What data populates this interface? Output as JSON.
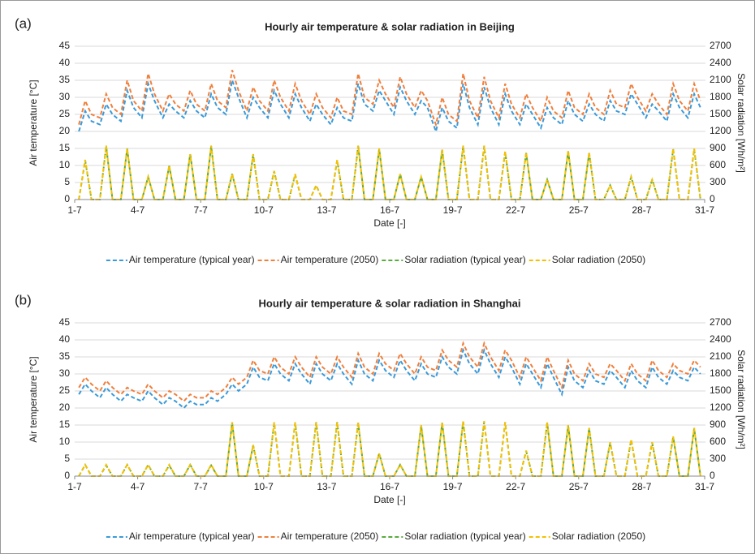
{
  "chart_data": [
    {
      "type": "line",
      "panel_label": "(a)",
      "title": "Hourly air temperature & solar radiation in Beijing",
      "x_label": "Date [-]",
      "y_label": "Air temperature [°C]",
      "y2_label": "Solar radiation [Wh/m²]",
      "xlim": [
        1,
        31
      ],
      "xticks": [
        {
          "value": 1,
          "label": "1-7"
        },
        {
          "value": 4,
          "label": "4-7"
        },
        {
          "value": 7,
          "label": "7-7"
        },
        {
          "value": 10,
          "label": "10-7"
        },
        {
          "value": 13,
          "label": "13-7"
        },
        {
          "value": 16,
          "label": "16-7"
        },
        {
          "value": 19,
          "label": "19-7"
        },
        {
          "value": 22,
          "label": "22-7"
        },
        {
          "value": 25,
          "label": "25-7"
        },
        {
          "value": 28,
          "label": "28-7"
        },
        {
          "value": 31,
          "label": "31-7"
        }
      ],
      "ylim": [
        0,
        45
      ],
      "yticks": [
        0,
        5,
        10,
        15,
        20,
        25,
        30,
        35,
        40,
        45
      ],
      "y2lim": [
        0,
        2700
      ],
      "y2ticks": [
        0,
        300,
        600,
        900,
        1200,
        1500,
        1800,
        2100,
        2400,
        2700
      ],
      "grid": true,
      "legend": "bottom",
      "x": [
        1.2,
        1.5,
        1.8,
        2.2,
        2.5,
        2.8,
        3.2,
        3.5,
        3.8,
        4.2,
        4.5,
        4.8,
        5.2,
        5.5,
        5.8,
        6.2,
        6.5,
        6.8,
        7.2,
        7.5,
        7.8,
        8.2,
        8.5,
        8.8,
        9.2,
        9.5,
        9.8,
        10.2,
        10.5,
        10.8,
        11.2,
        11.5,
        11.8,
        12.2,
        12.5,
        12.8,
        13.2,
        13.5,
        13.8,
        14.2,
        14.5,
        14.8,
        15.2,
        15.5,
        15.8,
        16.2,
        16.5,
        16.8,
        17.2,
        17.5,
        17.8,
        18.2,
        18.5,
        18.8,
        19.2,
        19.5,
        19.8,
        20.2,
        20.5,
        20.8,
        21.2,
        21.5,
        21.8,
        22.2,
        22.5,
        22.8,
        23.2,
        23.5,
        23.8,
        24.2,
        24.5,
        24.8,
        25.2,
        25.5,
        25.8,
        26.2,
        26.5,
        26.8,
        27.2,
        27.5,
        27.8,
        28.2,
        28.5,
        28.8,
        29.2,
        29.5,
        29.8,
        30.2,
        30.5,
        30.8
      ],
      "series": [
        {
          "name": "Air temperature (typical year)",
          "color": "#3a9ad9",
          "values": [
            20,
            26,
            23,
            22,
            28,
            25,
            23,
            32,
            27,
            24,
            34,
            29,
            24,
            28,
            26,
            24,
            29,
            26,
            24,
            31,
            27,
            25,
            35,
            30,
            24,
            30,
            27,
            24,
            32,
            28,
            24,
            31,
            27,
            23,
            28,
            25,
            22,
            27,
            24,
            23,
            34,
            28,
            26,
            32,
            29,
            25,
            33,
            29,
            25,
            29,
            27,
            20,
            27,
            23,
            21,
            34,
            27,
            22,
            33,
            27,
            22,
            31,
            26,
            22,
            28,
            25,
            21,
            27,
            24,
            22,
            29,
            25,
            23,
            28,
            25,
            23,
            29,
            26,
            25,
            31,
            28,
            24,
            28,
            26,
            23,
            31,
            27,
            24,
            31,
            27
          ]
        },
        {
          "name": "Air temperature (2050)",
          "color": "#f07f3c",
          "values": [
            22,
            29,
            25,
            24,
            31,
            27,
            25,
            35,
            29,
            26,
            37,
            31,
            26,
            31,
            28,
            26,
            32,
            28,
            26,
            34,
            29,
            27,
            38,
            32,
            26,
            33,
            29,
            26,
            35,
            30,
            26,
            34,
            29,
            25,
            31,
            27,
            24,
            30,
            26,
            25,
            37,
            30,
            28,
            35,
            31,
            27,
            36,
            31,
            27,
            32,
            29,
            22,
            30,
            25,
            23,
            37,
            29,
            24,
            36,
            29,
            24,
            34,
            28,
            24,
            31,
            27,
            23,
            30,
            26,
            24,
            32,
            27,
            25,
            31,
            27,
            25,
            32,
            28,
            27,
            34,
            30,
            26,
            31,
            28,
            25,
            34,
            29,
            26,
            34,
            29
          ]
        },
        {
          "name": "Solar radiation (typical year)",
          "color": "#5aab3e",
          "axis": "y2",
          "values": [
            0,
            690,
            0,
            0,
            940,
            0,
            0,
            900,
            0,
            0,
            400,
            0,
            0,
            590,
            0,
            0,
            800,
            0,
            0,
            940,
            0,
            0,
            450,
            0,
            0,
            790,
            0,
            0,
            500,
            0,
            0,
            440,
            0,
            0,
            250,
            0,
            0,
            690,
            0,
            0,
            940,
            0,
            0,
            890,
            0,
            0,
            450,
            0,
            0,
            400,
            0,
            0,
            870,
            0,
            0,
            940,
            0,
            0,
            940,
            0,
            0,
            840,
            0,
            0,
            820,
            0,
            0,
            350,
            0,
            0,
            850,
            0,
            0,
            820,
            0,
            0,
            250,
            0,
            0,
            400,
            0,
            0,
            350,
            0,
            0,
            890,
            0,
            0,
            890,
            0
          ]
        },
        {
          "name": "Solar radiation (2050)",
          "color": "#f5c000",
          "axis": "y2",
          "values": [
            0,
            700,
            0,
            0,
            950,
            0,
            0,
            900,
            0,
            0,
            400,
            0,
            0,
            600,
            0,
            0,
            800,
            0,
            0,
            950,
            0,
            0,
            450,
            0,
            0,
            800,
            0,
            0,
            500,
            0,
            0,
            450,
            0,
            0,
            250,
            0,
            0,
            700,
            0,
            0,
            950,
            0,
            0,
            900,
            0,
            0,
            450,
            0,
            0,
            400,
            0,
            0,
            880,
            0,
            0,
            950,
            0,
            0,
            950,
            0,
            0,
            850,
            0,
            0,
            830,
            0,
            0,
            350,
            0,
            0,
            860,
            0,
            0,
            830,
            0,
            0,
            250,
            0,
            0,
            400,
            0,
            0,
            350,
            0,
            0,
            900,
            0,
            0,
            900,
            0
          ]
        }
      ]
    },
    {
      "type": "line",
      "panel_label": "(b)",
      "title": "Hourly air temperature & solar radiation in Shanghai",
      "x_label": "Date [-]",
      "y_label": "Air temperature [°C]",
      "y2_label": "Solar radiation [Wh/m²]",
      "xlim": [
        1,
        31
      ],
      "xticks": [
        {
          "value": 1,
          "label": "1-7"
        },
        {
          "value": 4,
          "label": "4-7"
        },
        {
          "value": 7,
          "label": "7-7"
        },
        {
          "value": 10,
          "label": "10-7"
        },
        {
          "value": 13,
          "label": "13-7"
        },
        {
          "value": 16,
          "label": "16-7"
        },
        {
          "value": 19,
          "label": "19-7"
        },
        {
          "value": 22,
          "label": "22-7"
        },
        {
          "value": 25,
          "label": "25-7"
        },
        {
          "value": 28,
          "label": "28-7"
        },
        {
          "value": 31,
          "label": "31-7"
        }
      ],
      "ylim": [
        0,
        45
      ],
      "yticks": [
        0,
        5,
        10,
        15,
        20,
        25,
        30,
        35,
        40,
        45
      ],
      "y2lim": [
        0,
        2700
      ],
      "y2ticks": [
        0,
        300,
        600,
        900,
        1200,
        1500,
        1800,
        2100,
        2400,
        2700
      ],
      "grid": true,
      "legend": "bottom",
      "x": [
        1.2,
        1.5,
        1.8,
        2.2,
        2.5,
        2.8,
        3.2,
        3.5,
        3.8,
        4.2,
        4.5,
        4.8,
        5.2,
        5.5,
        5.8,
        6.2,
        6.5,
        6.8,
        7.2,
        7.5,
        7.8,
        8.2,
        8.5,
        8.8,
        9.2,
        9.5,
        9.8,
        10.2,
        10.5,
        10.8,
        11.2,
        11.5,
        11.8,
        12.2,
        12.5,
        12.8,
        13.2,
        13.5,
        13.8,
        14.2,
        14.5,
        14.8,
        15.2,
        15.5,
        15.8,
        16.2,
        16.5,
        16.8,
        17.2,
        17.5,
        17.8,
        18.2,
        18.5,
        18.8,
        19.2,
        19.5,
        19.8,
        20.2,
        20.5,
        20.8,
        21.2,
        21.5,
        21.8,
        22.2,
        22.5,
        22.8,
        23.2,
        23.5,
        23.8,
        24.2,
        24.5,
        24.8,
        25.2,
        25.5,
        25.8,
        26.2,
        26.5,
        26.8,
        27.2,
        27.5,
        27.8,
        28.2,
        28.5,
        28.8,
        29.2,
        29.5,
        29.8,
        30.2,
        30.5,
        30.8
      ],
      "series": [
        {
          "name": "Air temperature (typical year)",
          "color": "#3a9ad9",
          "values": [
            24,
            27,
            25,
            23,
            26,
            24,
            22,
            24,
            23,
            22,
            25,
            23,
            21,
            23,
            22,
            20,
            22,
            21,
            21,
            23,
            22,
            24,
            27,
            25,
            27,
            32,
            29,
            28,
            33,
            30,
            28,
            33,
            30,
            27,
            33,
            30,
            28,
            33,
            30,
            27,
            34,
            30,
            28,
            34,
            31,
            29,
            34,
            31,
            28,
            33,
            30,
            29,
            35,
            32,
            30,
            37,
            33,
            30,
            37,
            33,
            29,
            35,
            32,
            27,
            33,
            30,
            26,
            33,
            29,
            24,
            32,
            28,
            26,
            31,
            28,
            27,
            31,
            29,
            26,
            31,
            28,
            26,
            32,
            29,
            27,
            31,
            29,
            28,
            32,
            30
          ]
        },
        {
          "name": "Air temperature (2050)",
          "color": "#f07f3c",
          "values": [
            26,
            29,
            27,
            25,
            28,
            26,
            24,
            26,
            25,
            24,
            27,
            25,
            23,
            25,
            24,
            22,
            24,
            23,
            23,
            25,
            24,
            26,
            29,
            27,
            29,
            34,
            31,
            30,
            35,
            32,
            30,
            35,
            32,
            29,
            35,
            32,
            30,
            35,
            32,
            29,
            36,
            32,
            30,
            36,
            33,
            31,
            36,
            33,
            30,
            35,
            32,
            31,
            37,
            34,
            32,
            39,
            35,
            32,
            39,
            35,
            31,
            37,
            34,
            29,
            35,
            32,
            28,
            35,
            31,
            26,
            34,
            30,
            28,
            33,
            30,
            29,
            33,
            31,
            28,
            33,
            30,
            28,
            34,
            31,
            29,
            33,
            31,
            30,
            34,
            32
          ]
        },
        {
          "name": "Solar radiation (typical year)",
          "color": "#5aab3e",
          "axis": "y2",
          "values": [
            0,
            200,
            0,
            0,
            190,
            0,
            0,
            200,
            0,
            0,
            200,
            0,
            0,
            190,
            0,
            0,
            200,
            0,
            0,
            190,
            0,
            0,
            940,
            0,
            0,
            540,
            0,
            0,
            940,
            0,
            0,
            940,
            0,
            0,
            950,
            0,
            0,
            950,
            0,
            0,
            940,
            0,
            0,
            400,
            0,
            0,
            200,
            0,
            0,
            890,
            0,
            0,
            940,
            0,
            0,
            960,
            0,
            0,
            960,
            0,
            0,
            950,
            0,
            0,
            440,
            0,
            0,
            940,
            0,
            0,
            890,
            0,
            0,
            840,
            0,
            0,
            590,
            0,
            0,
            640,
            0,
            0,
            590,
            0,
            0,
            690,
            0,
            0,
            840,
            0
          ]
        },
        {
          "name": "Solar radiation (2050)",
          "color": "#f5c000",
          "axis": "y2",
          "values": [
            0,
            200,
            0,
            0,
            200,
            0,
            0,
            200,
            0,
            0,
            200,
            0,
            0,
            200,
            0,
            0,
            200,
            0,
            0,
            200,
            0,
            0,
            950,
            0,
            0,
            550,
            0,
            0,
            950,
            0,
            0,
            950,
            0,
            0,
            950,
            0,
            0,
            950,
            0,
            0,
            950,
            0,
            0,
            400,
            0,
            0,
            200,
            0,
            0,
            900,
            0,
            0,
            950,
            0,
            0,
            970,
            0,
            0,
            970,
            0,
            0,
            950,
            0,
            0,
            450,
            0,
            0,
            950,
            0,
            0,
            900,
            0,
            0,
            850,
            0,
            0,
            600,
            0,
            0,
            650,
            0,
            0,
            600,
            0,
            0,
            700,
            0,
            0,
            850,
            0
          ]
        }
      ]
    }
  ]
}
